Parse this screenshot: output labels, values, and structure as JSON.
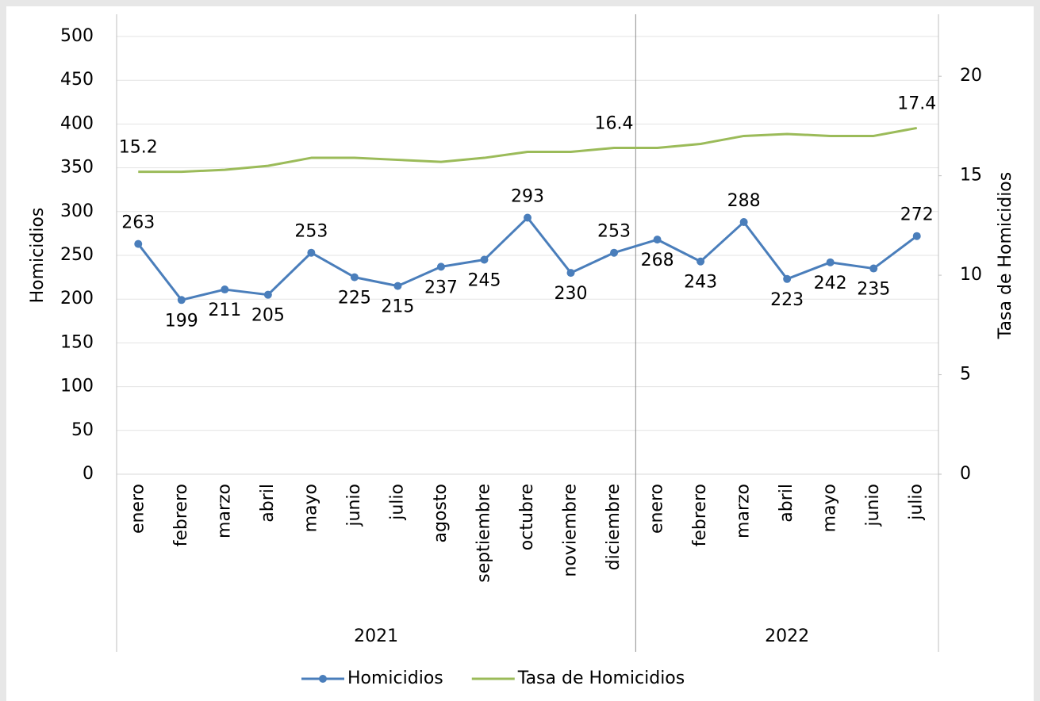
{
  "chart_data": {
    "type": "line",
    "category_groups": [
      {
        "label": "2021",
        "categories": [
          "enero",
          "febrero",
          "marzo",
          "abril",
          "mayo",
          "junio",
          "julio",
          "agosto",
          "septiembre",
          "octubre",
          "noviembre",
          "diciembre"
        ]
      },
      {
        "label": "2022",
        "categories": [
          "enero",
          "febrero",
          "marzo",
          "abril",
          "mayo",
          "junio",
          "julio"
        ]
      }
    ],
    "y_label": "Homicidios",
    "y2_label": "Tasa de Homicidios",
    "ylim": [
      0,
      500
    ],
    "yticks": [
      0,
      50,
      100,
      150,
      200,
      250,
      300,
      350,
      400,
      450,
      500
    ],
    "y2lim": [
      0,
      22
    ],
    "y2ticks": [
      0,
      5,
      10,
      15,
      20
    ],
    "grid": true,
    "legend": "bottom",
    "series": [
      {
        "name": "Homicidios",
        "color": "#4a7ebb",
        "marker": "circle",
        "values": [
          263,
          199,
          211,
          205,
          253,
          225,
          215,
          237,
          245,
          293,
          230,
          253,
          268,
          243,
          288,
          223,
          242,
          235,
          272
        ]
      },
      {
        "name": "Tasa de Homicidios",
        "color": "#9bbb59",
        "axis": "y2",
        "values": [
          15.2,
          15.2,
          15.3,
          15.5,
          15.9,
          15.9,
          15.8,
          15.7,
          15.9,
          16.2,
          16.2,
          16.4,
          16.4,
          16.6,
          17.0,
          17.1,
          17.0,
          17.0,
          17.4
        ],
        "value_labels": [
          "15.2",
          null,
          null,
          null,
          null,
          null,
          null,
          null,
          null,
          null,
          null,
          "16.4",
          null,
          null,
          null,
          null,
          null,
          null,
          "17.4"
        ]
      }
    ]
  }
}
